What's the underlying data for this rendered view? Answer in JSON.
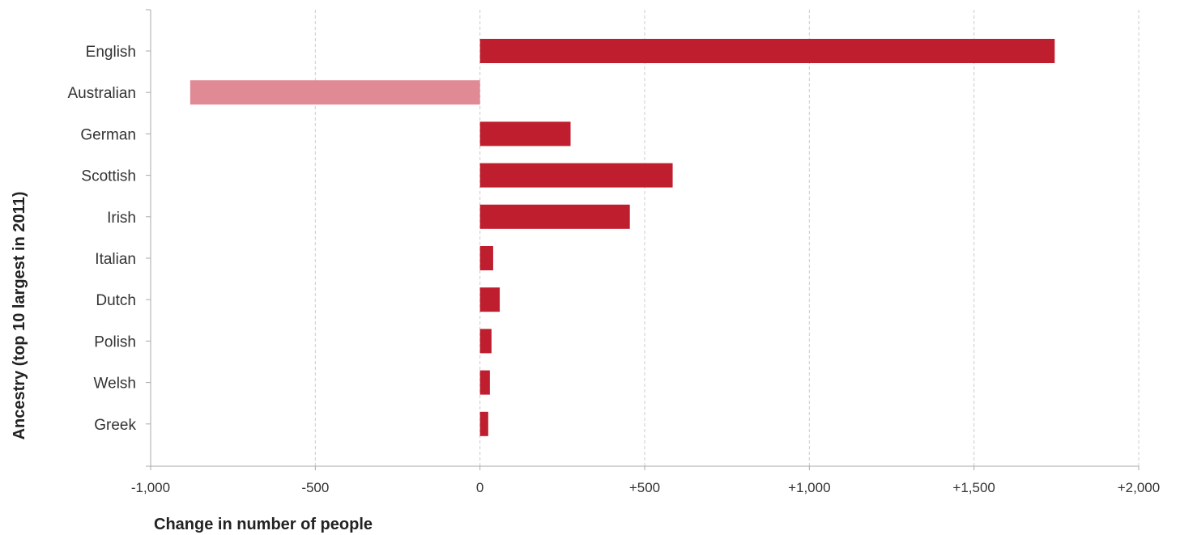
{
  "chart_data": {
    "type": "bar",
    "orientation": "horizontal",
    "categories": [
      "English",
      "Australian",
      "German",
      "Scottish",
      "Irish",
      "Italian",
      "Dutch",
      "Polish",
      "Welsh",
      "Greek"
    ],
    "values": [
      1745,
      -880,
      275,
      585,
      455,
      40,
      60,
      35,
      30,
      25
    ],
    "xlabel": "Change in number of people",
    "ylabel": "Ancestry (top 10 largest in 2011)",
    "xlim": [
      -1000,
      2000
    ],
    "x_ticks": [
      -1000,
      -500,
      0,
      500,
      1000,
      1500,
      2000
    ],
    "x_tick_labels": [
      "-1,000",
      "-500",
      "0",
      "+500",
      "+1,000",
      "+1,500",
      "+2,000"
    ],
    "grid": "vertical dashed",
    "colors": {
      "positive": "#bf1e2e",
      "negative": "#e08a96",
      "grid": "#cccccc",
      "axis": "#aaaaaa"
    }
  }
}
